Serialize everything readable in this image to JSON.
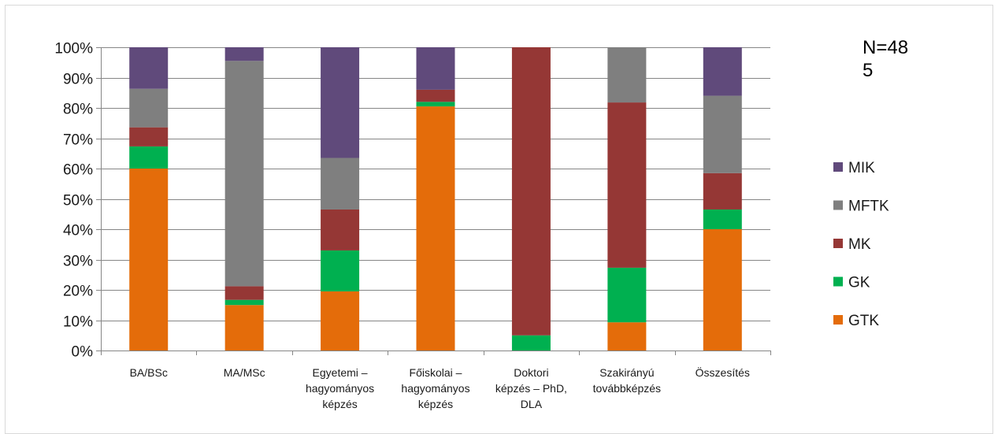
{
  "chart_data": {
    "type": "bar",
    "stacked": true,
    "categories": [
      [
        "BA/BSc"
      ],
      [
        "MA/MSc"
      ],
      [
        "Egyetemi –",
        "hagyományos",
        "képzés"
      ],
      [
        "Főiskolai –",
        "hagyományos",
        "képzés"
      ],
      [
        "Doktori",
        "képzés – PhD,",
        "DLA"
      ],
      [
        "Szakirányú",
        "továbbképzés"
      ],
      [
        "Összesítés"
      ]
    ],
    "series": [
      {
        "name": "GTK",
        "color": "#E46C0A",
        "values": [
          60,
          15,
          19.5,
          80.5,
          0,
          9.3,
          40
        ]
      },
      {
        "name": "GK",
        "color": "#00B050",
        "values": [
          7.3,
          1.7,
          13.5,
          1.5,
          5,
          18,
          6.5
        ]
      },
      {
        "name": "MK",
        "color": "#953735",
        "values": [
          6.3,
          4.5,
          13.5,
          4,
          95,
          54.5,
          12
        ]
      },
      {
        "name": "MFTK",
        "color": "#7F7F7F",
        "values": [
          12.7,
          74.3,
          17,
          0,
          0,
          18.2,
          25.5
        ]
      },
      {
        "name": "MIK",
        "color": "#604A7B",
        "values": [
          13.7,
          4.5,
          36.5,
          14,
          0,
          0,
          16
        ]
      }
    ],
    "yticks": [
      "0%",
      "10%",
      "20%",
      "30%",
      "40%",
      "50%",
      "60%",
      "70%",
      "80%",
      "90%",
      "100%"
    ],
    "ylim": [
      0,
      100
    ],
    "legend_position": "right",
    "annotation": [
      "N=48",
      "5"
    ],
    "grid": "horizontal"
  }
}
